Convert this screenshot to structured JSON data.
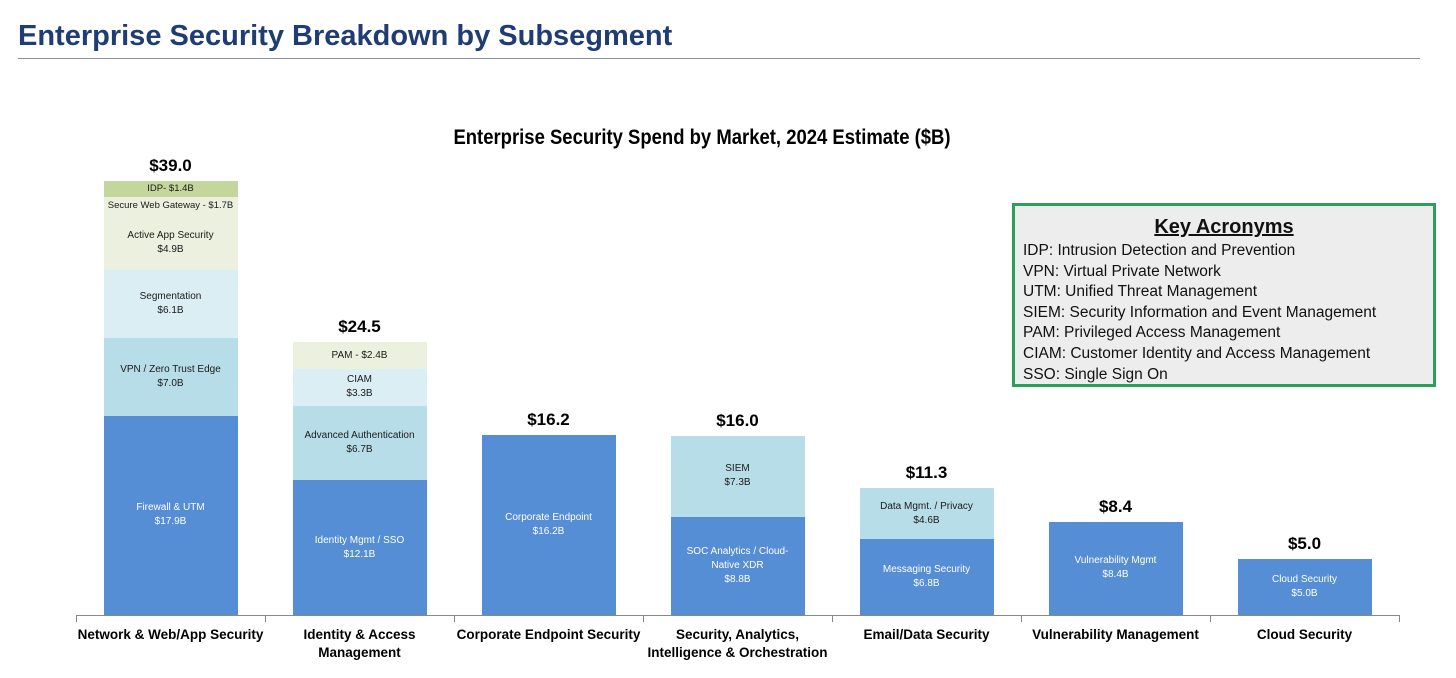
{
  "page_title": "Enterprise Security Breakdown by Subsegment",
  "key": {
    "title": "Key Acronyms",
    "items": [
      "IDP: Intrusion Detection and Prevention",
      "VPN: Virtual Private Network",
      "UTM: Unified Threat Management",
      "SIEM: Security Information and Event Management",
      "PAM: Privileged Access Management",
      "CIAM: Customer Identity and Access Management",
      "SSO: Single Sign On"
    ]
  },
  "chart_data": {
    "type": "bar",
    "stacked": true,
    "title": "Enterprise Security Spend by Market, 2024 Estimate ($B)",
    "xlabel": "",
    "ylabel": "",
    "ylim": [
      0,
      39
    ],
    "colors": {
      "blue": "#558ed5",
      "light_blue": "#b7dee8",
      "lighter_blue": "#dbeef4",
      "pale": "#ebf1de",
      "green": "#c3d69b"
    },
    "categories": [
      {
        "name": "Network & Web/App Security",
        "total": "$39.0",
        "segments": [
          {
            "label": "Firewall & UTM\n$17.9B",
            "value": 17.9,
            "color": "blue"
          },
          {
            "label": "VPN / Zero Trust Edge\n$7.0B",
            "value": 7.0,
            "color": "light_blue"
          },
          {
            "label": "Segmentation\n$6.1B",
            "value": 6.1,
            "color": "lighter_blue"
          },
          {
            "label": "Active App Security\n$4.9B",
            "value": 4.9,
            "color": "pale"
          },
          {
            "label": "Secure Web Gateway - $1.7B",
            "value": 1.7,
            "color": "pale"
          },
          {
            "label": "IDP- $1.4B",
            "value": 1.4,
            "color": "green"
          }
        ]
      },
      {
        "name": "Identity & Access\nManagement",
        "total": "$24.5",
        "segments": [
          {
            "label": "Identity Mgmt / SSO\n$12.1B",
            "value": 12.1,
            "color": "blue"
          },
          {
            "label": "Advanced Authentication\n$6.7B",
            "value": 6.7,
            "color": "light_blue"
          },
          {
            "label": "CIAM\n$3.3B",
            "value": 3.3,
            "color": "lighter_blue"
          },
          {
            "label": "PAM - $2.4B",
            "value": 2.4,
            "color": "pale"
          }
        ]
      },
      {
        "name": "Corporate Endpoint Security",
        "total": "$16.2",
        "segments": [
          {
            "label": "Corporate Endpoint\n$16.2B",
            "value": 16.2,
            "color": "blue"
          }
        ]
      },
      {
        "name": "Security, Analytics,\nIntelligence & Orchestration",
        "total": "$16.0",
        "segments": [
          {
            "label": "SOC Analytics / Cloud-\nNative XDR\n$8.8B",
            "value": 8.8,
            "color": "blue"
          },
          {
            "label": "SIEM\n$7.3B",
            "value": 7.3,
            "color": "light_blue"
          }
        ]
      },
      {
        "name": "Email/Data Security",
        "total": "$11.3",
        "segments": [
          {
            "label": "Messaging Security\n$6.8B",
            "value": 6.8,
            "color": "blue"
          },
          {
            "label": "Data Mgmt. / Privacy\n$4.6B",
            "value": 4.6,
            "color": "light_blue"
          }
        ]
      },
      {
        "name": "Vulnerability Management",
        "total": "$8.4",
        "segments": [
          {
            "label": "Vulnerability Mgmt\n$8.4B",
            "value": 8.4,
            "color": "blue"
          }
        ]
      },
      {
        "name": "Cloud Security",
        "total": "$5.0",
        "segments": [
          {
            "label": "Cloud Security\n$5.0B",
            "value": 5.0,
            "color": "blue"
          }
        ]
      }
    ]
  }
}
